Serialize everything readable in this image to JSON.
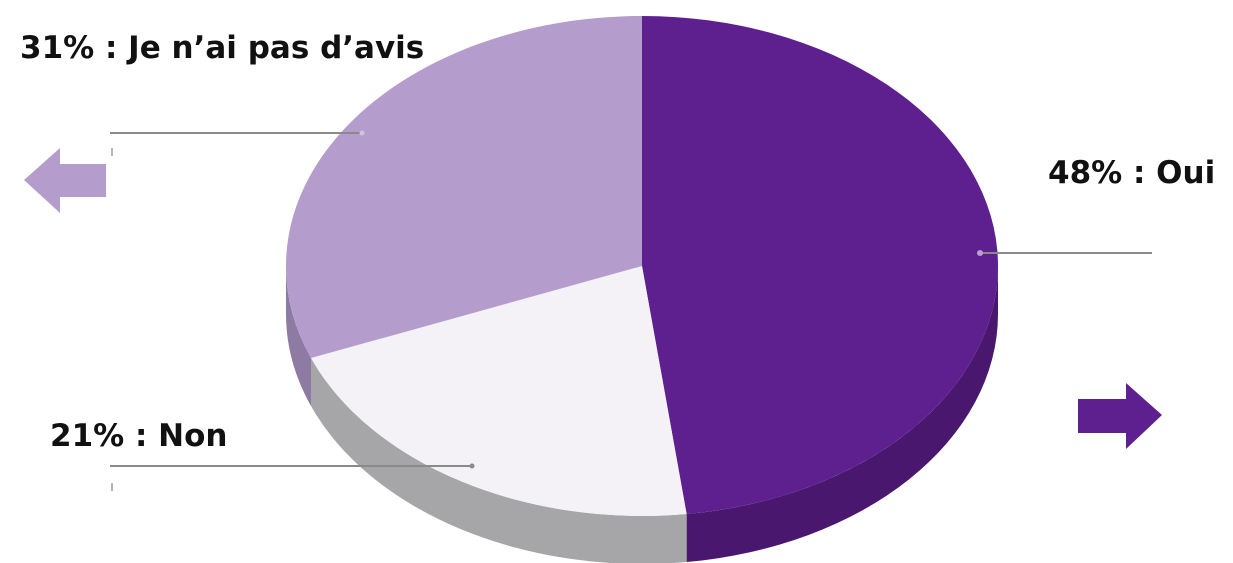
{
  "chart_data": {
    "type": "pie",
    "title": "",
    "slices": [
      {
        "label": "Oui",
        "value": 48,
        "display": "48% : Oui",
        "color": "#5e1f8f",
        "side_color": "#4a176f"
      },
      {
        "label": "Non",
        "value": 21,
        "display": "21% : Non",
        "color": "#f4f1f7",
        "side_color": "#a6a5a8"
      },
      {
        "label": "Je n’ai pas d’avis",
        "value": 31,
        "display": "31% : Je n’ai pas d’avis",
        "color": "#b49ccd",
        "side_color": "#8e7ba3"
      }
    ],
    "legend": "none"
  },
  "decorations": {
    "left_arrow": {
      "icon": "arrow-left-icon",
      "color": "#b49ccd"
    },
    "right_arrow": {
      "icon": "arrow-right-icon",
      "color": "#5e1f8f"
    }
  }
}
